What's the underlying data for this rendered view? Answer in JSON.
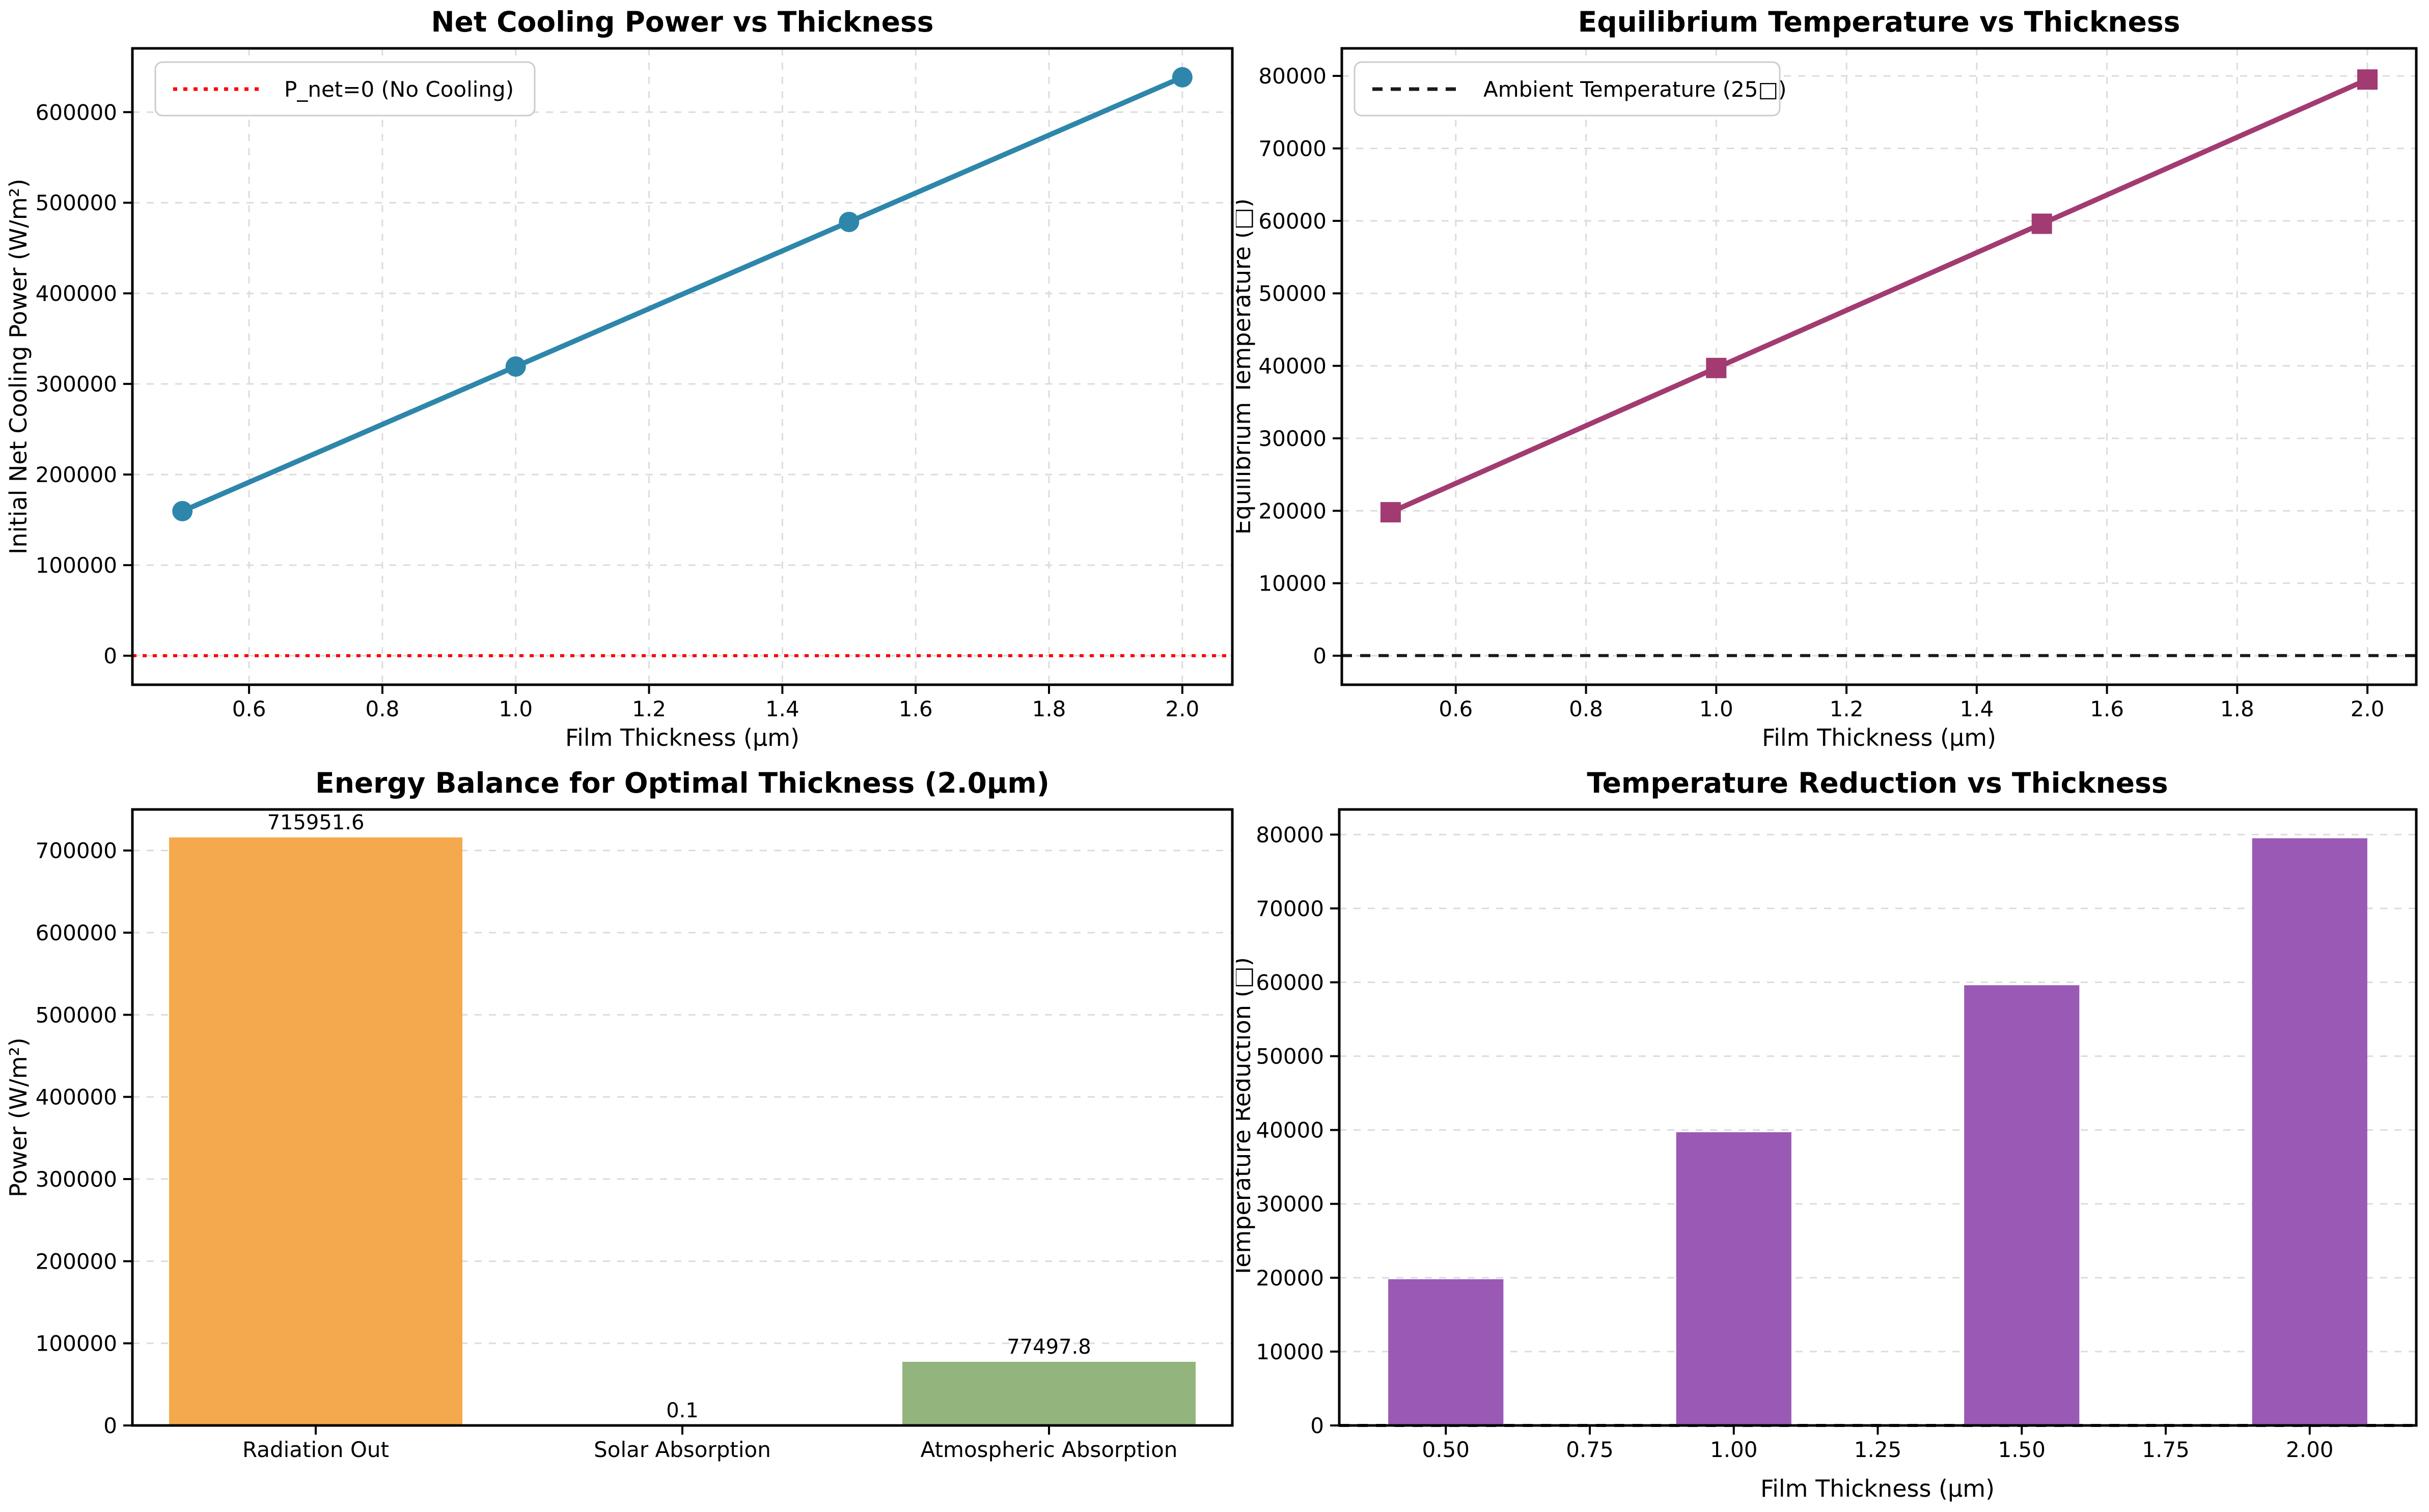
{
  "figure": {
    "background": "#ffffff",
    "grid_color": "#dcdcdc",
    "spine_color": "#000000",
    "text_color": "#000000"
  },
  "chart_data": [
    {
      "id": "net-cooling-power",
      "type": "line",
      "title": "Net Cooling Power vs Thickness",
      "xlabel": "Film Thickness (μm)",
      "ylabel": "Initial Net Cooling Power (W/m²)",
      "color": "#2E86AB",
      "marker": "circle",
      "x": [
        0.5,
        1.0,
        1.5,
        2.0
      ],
      "y": [
        159600,
        319200,
        478800,
        638500
      ],
      "xlim": [
        0.425,
        2.075
      ],
      "ylim": [
        -32000,
        670400
      ],
      "xticks": [
        0.6,
        0.8,
        1.0,
        1.2,
        1.4,
        1.6,
        1.8,
        2.0
      ],
      "xtick_labels": [
        "0.6",
        "0.8",
        "1.0",
        "1.2",
        "1.4",
        "1.6",
        "1.8",
        "2.0"
      ],
      "yticks": [
        0,
        100000,
        200000,
        300000,
        400000,
        500000,
        600000
      ],
      "ytick_labels": [
        "0",
        "100000",
        "200000",
        "300000",
        "400000",
        "500000",
        "600000"
      ],
      "grid": "both",
      "refline": {
        "y": 0,
        "color": "#FF0000",
        "dash": "8 12",
        "label": "P_net=0 (No Cooling)"
      },
      "legend": {
        "label": "P_net=0 (No Cooling)",
        "position": "upper-left"
      }
    },
    {
      "id": "equilibrium-temperature",
      "type": "line",
      "title": "Equilibrium Temperature vs Thickness",
      "xlabel": "Film Thickness (μm)",
      "ylabel": "Equilibrium Temperature (□)",
      "color": "#A23B72",
      "marker": "square",
      "x": [
        0.5,
        1.0,
        1.5,
        2.0
      ],
      "y": [
        19800,
        39700,
        59600,
        79500
      ],
      "xlim": [
        0.425,
        2.075
      ],
      "ylim": [
        -4000,
        83800
      ],
      "xticks": [
        0.6,
        0.8,
        1.0,
        1.2,
        1.4,
        1.6,
        1.8,
        2.0
      ],
      "xtick_labels": [
        "0.6",
        "0.8",
        "1.0",
        "1.2",
        "1.4",
        "1.6",
        "1.8",
        "2.0"
      ],
      "yticks": [
        0,
        10000,
        20000,
        30000,
        40000,
        50000,
        60000,
        70000,
        80000
      ],
      "ytick_labels": [
        "0",
        "10000",
        "20000",
        "30000",
        "40000",
        "50000",
        "60000",
        "70000",
        "80000"
      ],
      "grid": "both",
      "refline": {
        "y": 25,
        "color": "#1a1a1a",
        "dash": "20 16",
        "label": "Ambient Temperature (25□)"
      },
      "legend": {
        "label": "Ambient Temperature (25□)",
        "position": "upper-left"
      }
    },
    {
      "id": "energy-balance",
      "type": "bar",
      "title": "Energy Balance for Optimal Thickness (2.0μm)",
      "xlabel": "",
      "ylabel": "Power (W/m²)",
      "categories": [
        "Radiation Out",
        "Solar Absorption",
        "Atmospheric Absorption"
      ],
      "x": [
        0,
        1,
        2
      ],
      "y": [
        715951.6,
        0.1,
        77497.8
      ],
      "value_labels": [
        "715951.6",
        "0.1",
        "77497.8"
      ],
      "bar_colors": [
        "#F4A94C",
        "#C0C0C0",
        "#94B47E"
      ],
      "bar_width": 0.8,
      "xlim": [
        -0.5,
        2.5
      ],
      "ylim": [
        0,
        750000
      ],
      "xticks": [
        0,
        1,
        2
      ],
      "xtick_labels": [
        "Radiation Out",
        "Solar Absorption",
        "Atmospheric Absorption"
      ],
      "yticks": [
        0,
        100000,
        200000,
        300000,
        400000,
        500000,
        600000,
        700000
      ],
      "ytick_labels": [
        "0",
        "100000",
        "200000",
        "300000",
        "400000",
        "500000",
        "600000",
        "700000"
      ],
      "grid": "y"
    },
    {
      "id": "temperature-reduction",
      "type": "bar",
      "title": "Temperature Reduction vs Thickness",
      "xlabel": "Film Thickness (μm)",
      "ylabel": "Temperature Reduction (□)",
      "x": [
        0.5,
        1.0,
        1.5,
        2.0
      ],
      "y": [
        19800,
        39700,
        59600,
        79500
      ],
      "value_labels": [],
      "bar_colors": [
        "#9B59B6",
        "#9B59B6",
        "#9B59B6",
        "#9B59B6"
      ],
      "bar_width": 0.2,
      "xlim": [
        0.315,
        2.185
      ],
      "ylim": [
        0,
        83400
      ],
      "xticks": [
        0.5,
        0.75,
        1.0,
        1.25,
        1.5,
        1.75,
        2.0
      ],
      "xtick_labels": [
        "0.50",
        "0.75",
        "1.00",
        "1.25",
        "1.50",
        "1.75",
        "2.00"
      ],
      "yticks": [
        0,
        10000,
        20000,
        30000,
        40000,
        50000,
        60000,
        70000,
        80000
      ],
      "ytick_labels": [
        "0",
        "10000",
        "20000",
        "30000",
        "40000",
        "50000",
        "60000",
        "70000",
        "80000"
      ],
      "grid": "y",
      "refline": {
        "y": 0,
        "color": "#1a1a1a",
        "dash": "20 16",
        "label": ""
      }
    }
  ]
}
